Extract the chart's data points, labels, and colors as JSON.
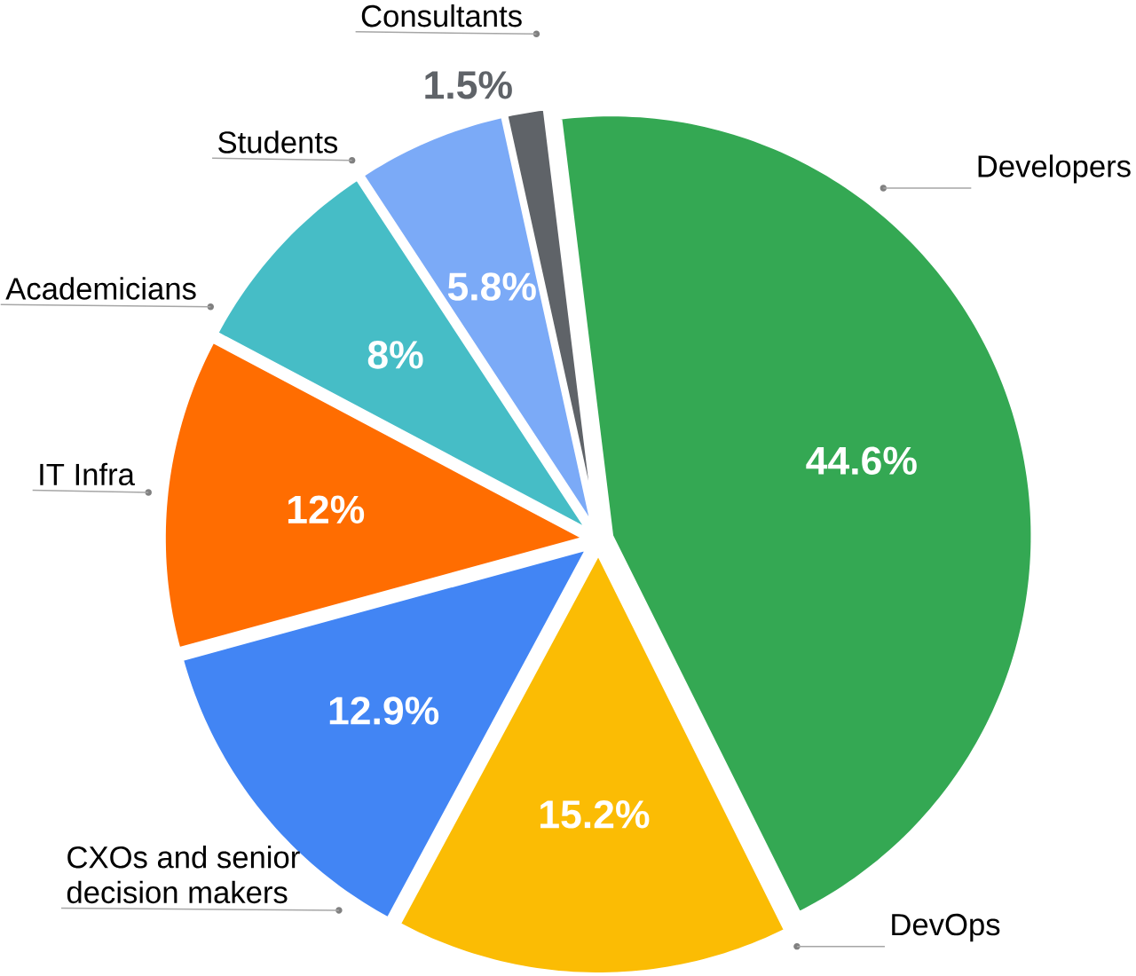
{
  "chart_data": {
    "type": "pie",
    "categories": [
      "Developers",
      "DevOps",
      "CXOs and senior decision makers",
      "IT Infra",
      "Academicians",
      "Students",
      "Consultants"
    ],
    "values": [
      44.6,
      15.2,
      12.9,
      12,
      8,
      5.8,
      1.5
    ],
    "value_labels": [
      "44.6%",
      "15.2%",
      "12.9%",
      "12%",
      "8%",
      "5.8%",
      "1.5%"
    ],
    "colors": [
      "#34a853",
      "#fbbc04",
      "#4285f4",
      "#ff6d01",
      "#46bdc6",
      "#7baaf7",
      "#5f6368"
    ]
  }
}
